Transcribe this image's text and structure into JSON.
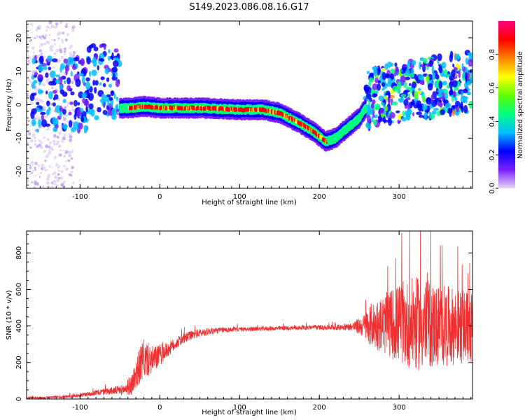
{
  "title": "S149.2023.086.08.16.G17",
  "chart_data": [
    {
      "type": "heatmap",
      "xlabel": "Height of straight line (km)",
      "ylabel": "Frequency (Hz)",
      "xlim": [
        -167,
        392
      ],
      "ylim": [
        -25,
        25
      ],
      "xticks": [
        -100,
        0,
        100,
        200,
        300
      ],
      "yticks": [
        -20,
        -10,
        0,
        10,
        20
      ],
      "ridge": {
        "x": [
          -50,
          -40,
          -20,
          0,
          50,
          100,
          130,
          150,
          175,
          195,
          208,
          220,
          235,
          250,
          258
        ],
        "freq": [
          -1,
          -1,
          -0.5,
          -1,
          -1,
          -1.5,
          -1.5,
          -2.5,
          -5.5,
          -8.5,
          -11,
          -10,
          -7,
          -4,
          -1
        ]
      },
      "colorbar": {
        "label": "Normalized spectral amplitude",
        "range": [
          0,
          1
        ],
        "ticks": [
          "0.0",
          "0.2",
          "0.4",
          "0.6",
          "0.8"
        ],
        "colors": [
          "#e6d8f7",
          "#7b1fff",
          "#0000ff",
          "#00bfff",
          "#00ff80",
          "#60ff00",
          "#ffff00",
          "#ff8000",
          "#ff0000",
          "#ff0080"
        ]
      }
    },
    {
      "type": "line",
      "xlabel": "Height of straight line (km)",
      "ylabel": "SNR (10 * v/v)",
      "xlim": [
        -167,
        392
      ],
      "ylim": [
        0,
        920
      ],
      "xticks": [
        -100,
        0,
        100,
        200,
        300
      ],
      "yticks": [
        0,
        200,
        400,
        600,
        800
      ],
      "color": "#f03030",
      "series": [
        {
          "x": [
            -167,
            -140,
            -120,
            -100,
            -80,
            -60,
            -45,
            -35,
            -28,
            -20,
            -10,
            0,
            10,
            25,
            40,
            60,
            80,
            100,
            130,
            160,
            190,
            220,
            240,
            255,
            265,
            280,
            300,
            320,
            340,
            360,
            380,
            392
          ],
          "y": [
            6,
            8,
            12,
            20,
            35,
            45,
            50,
            80,
            160,
            220,
            210,
            240,
            270,
            320,
            350,
            370,
            378,
            382,
            385,
            388,
            392,
            392,
            395,
            400,
            405,
            410,
            415,
            410,
            405,
            400,
            395,
            390
          ],
          "amp": [
            6,
            6,
            8,
            10,
            15,
            20,
            30,
            60,
            90,
            110,
            80,
            60,
            40,
            30,
            25,
            20,
            15,
            12,
            12,
            12,
            12,
            15,
            20,
            60,
            120,
            160,
            220,
            260,
            240,
            220,
            200,
            200
          ]
        }
      ]
    }
  ]
}
